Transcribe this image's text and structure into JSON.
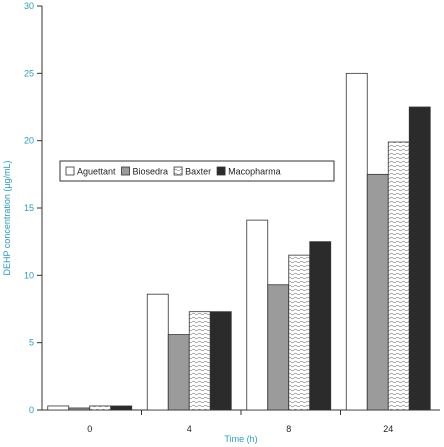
{
  "chart_data": {
    "type": "bar",
    "categories": [
      "0",
      "4",
      "8",
      "24"
    ],
    "series": [
      {
        "name": "Aguettant",
        "values": [
          0.3,
          8.6,
          14.1,
          25.0
        ],
        "fill": "#ffffff",
        "pattern": "none"
      },
      {
        "name": "Biosedra",
        "values": [
          0.15,
          5.6,
          9.3,
          17.5
        ],
        "fill": "#9b9b9b",
        "pattern": "none"
      },
      {
        "name": "Baxter",
        "values": [
          0.3,
          7.3,
          11.5,
          19.9
        ],
        "fill": "#ffffff",
        "pattern": "wavy"
      },
      {
        "name": "Macopharma",
        "values": [
          0.3,
          7.3,
          12.5,
          22.5
        ],
        "fill": "#2b2b2b",
        "pattern": "none"
      }
    ],
    "xlabel": "Time (h)",
    "ylabel": "DEHP concentration (µg/mL)",
    "ylim": [
      0,
      30
    ],
    "yticks": [
      "0",
      "5",
      "10",
      "15",
      "20",
      "25",
      "30"
    ],
    "grid": false,
    "legend_position": "center-top"
  },
  "colors": {
    "axis_label": "#2a9bbd",
    "bar_stroke": "#333333"
  }
}
